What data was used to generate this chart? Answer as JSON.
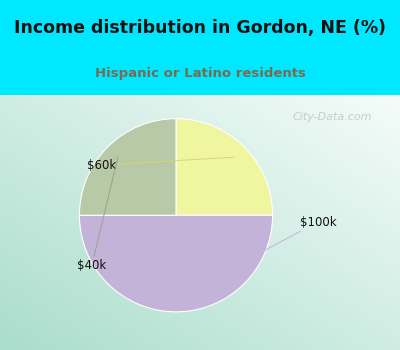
{
  "title": "Income distribution in Gordon, NE (%)",
  "subtitle": "Hispanic or Latino residents",
  "slices": [
    {
      "label": "$60k",
      "value": 25,
      "color": "#f0f5a0"
    },
    {
      "label": "$100k",
      "value": 50,
      "color": "#c4b3d9"
    },
    {
      "label": "$40k",
      "value": 25,
      "color": "#b8c9a8"
    }
  ],
  "background_top": "#00e8ff",
  "title_color": "#111111",
  "subtitle_color": "#7a6a50",
  "label_color": "#111111",
  "watermark": "City-Data.com",
  "startangle": 90,
  "chart_bg_tl": "#cceedd",
  "chart_bg_tr": "#f5f5f5",
  "chart_bg_bl": "#aaddcc",
  "chart_bg_br": "#e8f8f8",
  "label_line_100k_color": "#c4b3d9",
  "label_line_60k_color": "#d4d870",
  "label_line_40k_color": "#90a888"
}
